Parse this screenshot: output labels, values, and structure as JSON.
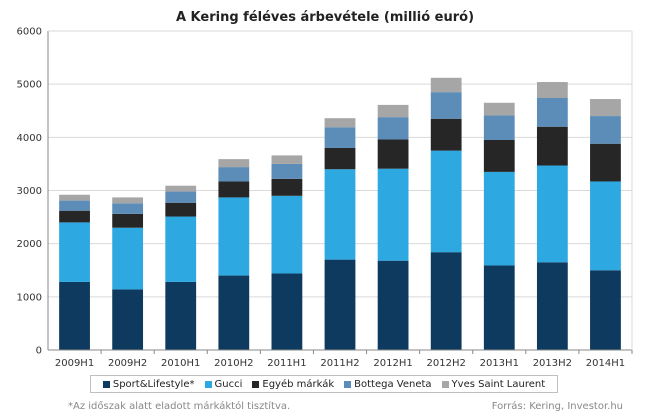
{
  "chart_data": {
    "type": "bar",
    "stacked": true,
    "title": "A Kering féléves árbevétele  (millió euró)",
    "categories": [
      "2009H1",
      "2009H2",
      "2010H1",
      "2010H2",
      "2011H1",
      "2011H2",
      "2012H1",
      "2012H2",
      "2013H1",
      "2013H2",
      "2014H1"
    ],
    "ylim": [
      0,
      6000
    ],
    "yticks": [
      0,
      1000,
      2000,
      3000,
      4000,
      5000,
      6000
    ],
    "grid": true,
    "legend_position": "bottom",
    "series": [
      {
        "name": "Sport&Lifestyle*",
        "color": "#0d3a5e",
        "values": [
          1280,
          1140,
          1280,
          1400,
          1440,
          1700,
          1680,
          1840,
          1590,
          1650,
          1500
        ]
      },
      {
        "name": "Gucci",
        "color": "#2ea8e0",
        "values": [
          1120,
          1160,
          1230,
          1470,
          1460,
          1700,
          1730,
          1910,
          1760,
          1820,
          1670
        ]
      },
      {
        "name": "Egyéb márkák",
        "color": "#262626",
        "values": [
          220,
          260,
          260,
          300,
          320,
          400,
          550,
          600,
          600,
          730,
          710
        ]
      },
      {
        "name": "Bottega Veneta",
        "color": "#5b8db8",
        "values": [
          190,
          200,
          210,
          270,
          280,
          390,
          420,
          500,
          460,
          540,
          520
        ]
      },
      {
        "name": "Yves Saint Laurent",
        "color": "#a6a6a6",
        "values": [
          110,
          110,
          110,
          150,
          160,
          170,
          230,
          270,
          240,
          300,
          320
        ]
      }
    ]
  },
  "footnotes": {
    "left": "*Az időszak alatt eladott márkáktól tisztítva.",
    "right": "Forrás: Kering, Investor.hu"
  }
}
